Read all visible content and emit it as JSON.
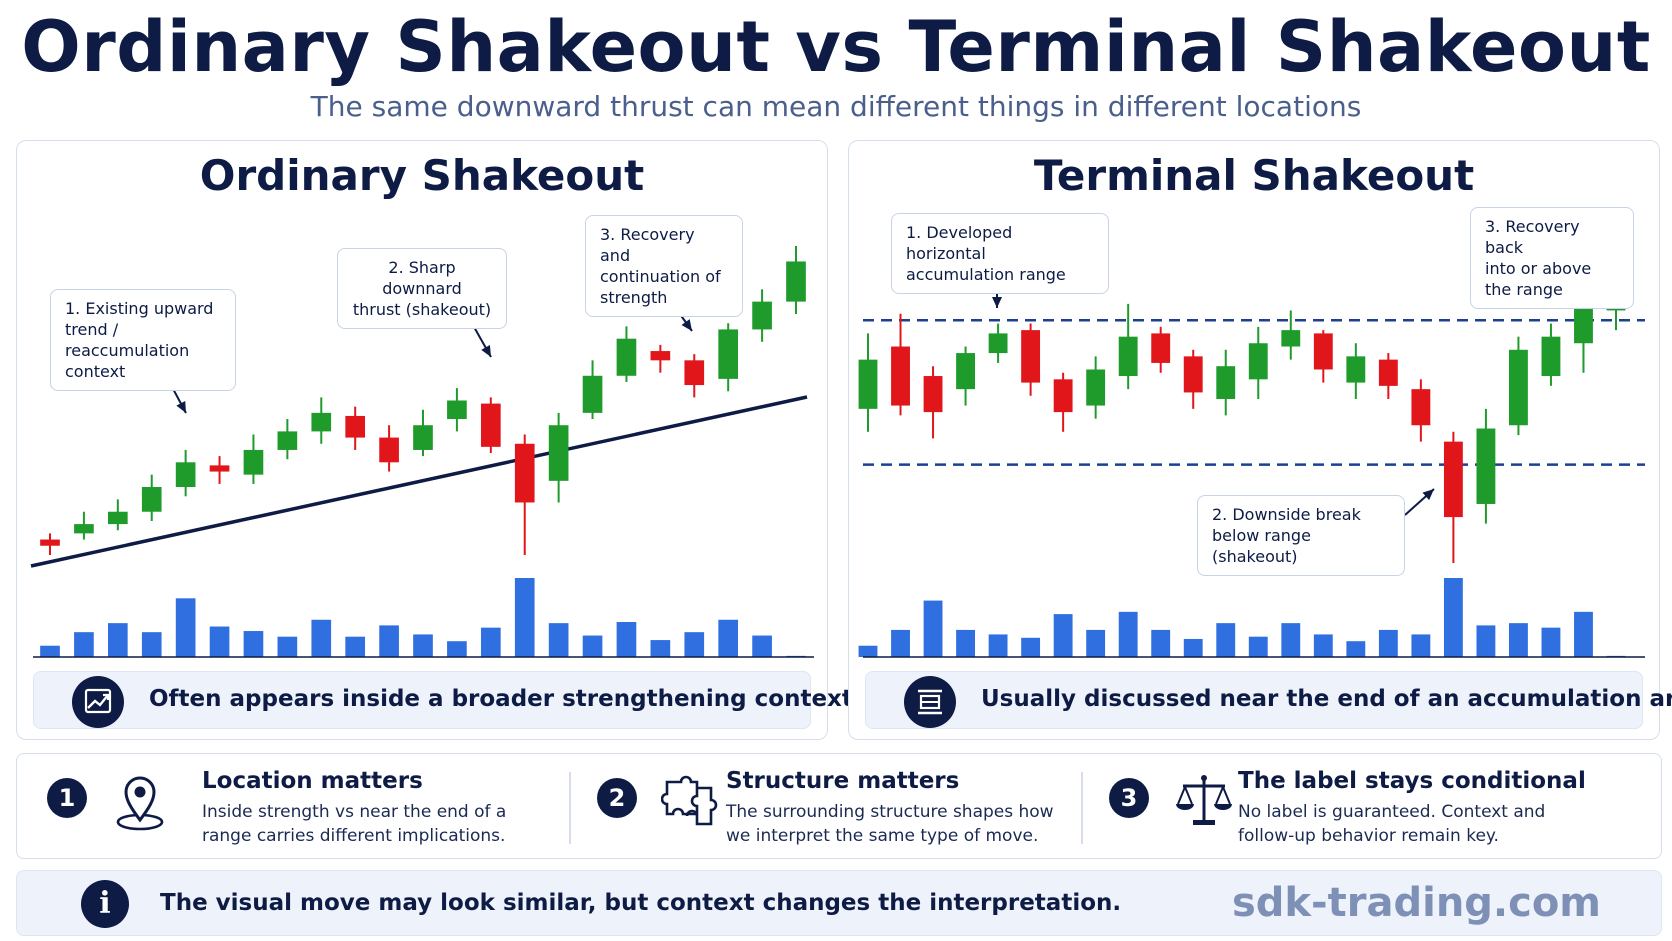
{
  "title": "Ordinary Shakeout vs Terminal Shakeout",
  "subtitle": "The same downward thrust can mean different things in different locations",
  "colors": {
    "bullish": "#1f9b2c",
    "bearish": "#e0161b",
    "volume": "#2f6fe0",
    "navy": "#0d1b45",
    "range_line": "#1c3f91"
  },
  "panels": {
    "left": {
      "title": "Ordinary Shakeout",
      "callouts": [
        "1. Existing upward\ntrend / reaccumulation\ncontext",
        "2. Sharp downnard\nthrust (shakeout)",
        "3. Recovery and\ncontinuation of\nstrength"
      ],
      "footer_icon": "trend-up-chart-icon",
      "footer": "Often appears inside a broader strengthening context"
    },
    "right": {
      "title": "Terminal Shakeout",
      "callouts": [
        "1. Developed horizontal\naccumulation range",
        "2. Downside break\nbelow range (shakeout)",
        "3. Recovery back\ninto or above\nthe range"
      ],
      "footer_icon": "range-bracket-icon",
      "footer": "Usually discussed near the end of an accumulation area"
    }
  },
  "chart_data": [
    {
      "type": "candlestick",
      "title": "Ordinary Shakeout",
      "annotations": [
        "1. Existing upward trend / reaccumulation context",
        "2. Sharp downnard thrust (shakeout)",
        "3. Recovery and continuation of strength"
      ],
      "trendline": "rising support line",
      "candles": [
        {
          "o": 5,
          "c": 3,
          "h": 7,
          "l": 0
        },
        {
          "o": 7,
          "c": 10,
          "h": 14,
          "l": 5
        },
        {
          "o": 10,
          "c": 14,
          "h": 18,
          "l": 8
        },
        {
          "o": 14,
          "c": 22,
          "h": 26,
          "l": 11
        },
        {
          "o": 22,
          "c": 30,
          "h": 34,
          "l": 19
        },
        {
          "o": 29,
          "c": 27,
          "h": 32,
          "l": 23
        },
        {
          "o": 26,
          "c": 34,
          "h": 39,
          "l": 23
        },
        {
          "o": 34,
          "c": 40,
          "h": 44,
          "l": 31
        },
        {
          "o": 40,
          "c": 46,
          "h": 51,
          "l": 36
        },
        {
          "o": 45,
          "c": 38,
          "h": 48,
          "l": 34
        },
        {
          "o": 38,
          "c": 30,
          "h": 42,
          "l": 27
        },
        {
          "o": 34,
          "c": 42,
          "h": 47,
          "l": 32
        },
        {
          "o": 44,
          "c": 50,
          "h": 54,
          "l": 40
        },
        {
          "o": 49,
          "c": 35,
          "h": 51,
          "l": 33
        },
        {
          "o": 36,
          "c": 17,
          "h": 39,
          "l": 0
        },
        {
          "o": 24,
          "c": 42,
          "h": 46,
          "l": 17
        },
        {
          "o": 46,
          "c": 58,
          "h": 63,
          "l": 44
        },
        {
          "o": 58,
          "c": 70,
          "h": 74,
          "l": 56
        },
        {
          "o": 66,
          "c": 63,
          "h": 68,
          "l": 59
        },
        {
          "o": 63,
          "c": 55,
          "h": 65,
          "l": 51
        },
        {
          "o": 57,
          "c": 73,
          "h": 75,
          "l": 53
        },
        {
          "o": 73,
          "c": 82,
          "h": 86,
          "l": 69
        },
        {
          "o": 82,
          "c": 95,
          "h": 100,
          "l": 78
        }
      ],
      "volume": [
        10,
        22,
        30,
        22,
        52,
        27,
        23,
        18,
        33,
        18,
        28,
        20,
        14,
        26,
        70,
        30,
        19,
        31,
        15,
        22,
        33,
        19,
        1
      ]
    },
    {
      "type": "candlestick",
      "title": "Terminal Shakeout",
      "annotations": [
        "1. Developed horizontal accumulation range",
        "2. Downside break below range (shakeout)",
        "3. Recovery back into or above the range"
      ],
      "range_lines": [
        74,
        30
      ],
      "candles": [
        {
          "o": 47,
          "c": 62,
          "h": 70,
          "l": 40
        },
        {
          "o": 66,
          "c": 48,
          "h": 76,
          "l": 45
        },
        {
          "o": 57,
          "c": 46,
          "h": 60,
          "l": 38
        },
        {
          "o": 53,
          "c": 64,
          "h": 66,
          "l": 48
        },
        {
          "o": 64,
          "c": 70,
          "h": 73,
          "l": 61
        },
        {
          "o": 71,
          "c": 55,
          "h": 73,
          "l": 51
        },
        {
          "o": 56,
          "c": 46,
          "h": 58,
          "l": 40
        },
        {
          "o": 48,
          "c": 59,
          "h": 63,
          "l": 44
        },
        {
          "o": 57,
          "c": 69,
          "h": 79,
          "l": 53
        },
        {
          "o": 70,
          "c": 61,
          "h": 72,
          "l": 58
        },
        {
          "o": 63,
          "c": 52,
          "h": 65,
          "l": 47
        },
        {
          "o": 50,
          "c": 60,
          "h": 65,
          "l": 45
        },
        {
          "o": 56,
          "c": 67,
          "h": 72,
          "l": 50
        },
        {
          "o": 66,
          "c": 71,
          "h": 77,
          "l": 62
        },
        {
          "o": 70,
          "c": 59,
          "h": 71,
          "l": 55
        },
        {
          "o": 55,
          "c": 63,
          "h": 67,
          "l": 50
        },
        {
          "o": 62,
          "c": 54,
          "h": 64,
          "l": 50
        },
        {
          "o": 53,
          "c": 42,
          "h": 56,
          "l": 37
        },
        {
          "o": 37,
          "c": 14,
          "h": 40,
          "l": 0
        },
        {
          "o": 18,
          "c": 41,
          "h": 47,
          "l": 12
        },
        {
          "o": 42,
          "c": 65,
          "h": 69,
          "l": 39
        },
        {
          "o": 57,
          "c": 69,
          "h": 73,
          "l": 54
        },
        {
          "o": 67,
          "c": 79,
          "h": 81,
          "l": 58
        },
        {
          "o": 77,
          "c": 90,
          "h": 94,
          "l": 71
        }
      ],
      "volume": [
        10,
        24,
        50,
        24,
        20,
        17,
        38,
        24,
        40,
        24,
        16,
        30,
        18,
        30,
        20,
        14,
        24,
        20,
        70,
        28,
        30,
        26,
        40,
        1
      ]
    }
  ],
  "points": [
    {
      "num": "1",
      "icon": "map-pin-icon",
      "title": "Location matters",
      "desc": "Inside strength vs near the end of a range carries different implications."
    },
    {
      "num": "2",
      "icon": "puzzle-icon",
      "title": "Structure matters",
      "desc": "The surrounding structure shapes how we interpret the same type of move."
    },
    {
      "num": "3",
      "icon": "scales-icon",
      "title": "The label stays conditional",
      "desc": "No label is guaranteed. Context and follow-up behavior remain key."
    }
  ],
  "bottom": {
    "icon": "info-icon",
    "icon_glyph": "i",
    "text": "The visual move may look similar, but context changes the interpretation.",
    "brand": "sdk-trading.com"
  }
}
